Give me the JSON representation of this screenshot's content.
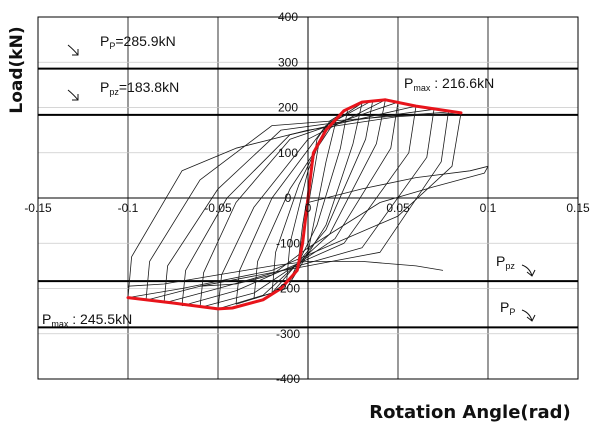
{
  "chart_data": {
    "type": "line",
    "xlabel": "Rotation Angle(rad)",
    "ylabel": "Load(kN)",
    "xlim": [
      -0.15,
      0.15
    ],
    "ylim": [
      -400,
      400
    ],
    "x_ticks": [
      "-0.15",
      "-0.1",
      "-0.05",
      "0",
      "0.05",
      "0.1",
      "0.15"
    ],
    "y_ticks": [
      "400",
      "300",
      "200",
      "100",
      "0",
      "-100",
      "-200",
      "-300",
      "-400"
    ],
    "grid": true,
    "reference_lines": [
      {
        "name": "Pp",
        "value": 285.9,
        "label_main": "P",
        "label_sub": "P",
        "label_rest": "=285.9kN",
        "side": "upper-left"
      },
      {
        "name": "Ppz",
        "value": 183.8,
        "label_main": "P",
        "label_sub": "pz",
        "label_rest": "=183.8kN",
        "side": "upper-left"
      },
      {
        "name": "Ppz",
        "value": -183.8,
        "label_main": "P",
        "label_sub": "pz",
        "label_rest": "",
        "side": "lower-right"
      },
      {
        "name": "Pp",
        "value": -285.9,
        "label_main": "P",
        "label_sub": "P",
        "label_rest": "",
        "side": "lower-right"
      }
    ],
    "annotations": [
      {
        "label_main": "P",
        "label_sub": "max",
        "label_rest": " : 216.6kN"
      },
      {
        "label_main": "P",
        "label_sub": "max",
        "label_rest": " : 245.5kN"
      }
    ],
    "series": [
      {
        "role": "envelope",
        "color": "#e8141b",
        "x": [
          -0.1,
          -0.075,
          -0.05,
          -0.042,
          -0.025,
          -0.015,
          -0.006,
          -0.003,
          0.0,
          0.003,
          0.01,
          0.02,
          0.03,
          0.043,
          0.06,
          0.085
        ],
        "y": [
          -220,
          -232,
          -245,
          -243,
          -225,
          -200,
          -160,
          -100,
          0,
          100,
          150,
          193,
          212,
          217,
          203,
          188
        ]
      },
      {
        "role": "hysteresis",
        "color": "#1a1a1a",
        "loops": [
          {
            "x": [
              -0.003,
              0.0,
              0.003,
              0.006,
              0.003,
              0.0,
              -0.003,
              -0.003
            ],
            "y": [
              -100,
              0,
              100,
              120,
              90,
              0,
              -90,
              -100
            ]
          },
          {
            "x": [
              -0.006,
              -0.003,
              0.005,
              0.01,
              0.006,
              0.0,
              -0.006,
              -0.006
            ],
            "y": [
              -160,
              -60,
              130,
              160,
              120,
              -20,
              -150,
              -160
            ]
          },
          {
            "x": [
              -0.012,
              -0.01,
              0.0,
              0.01,
              0.016,
              0.01,
              0.0,
              -0.012
            ],
            "y": [
              -190,
              -100,
              60,
              160,
              178,
              80,
              -120,
              -190
            ]
          },
          {
            "x": [
              -0.02,
              -0.018,
              -0.005,
              0.012,
              0.022,
              0.018,
              0.005,
              -0.01,
              -0.02
            ],
            "y": [
              -210,
              -120,
              30,
              170,
              195,
              110,
              -60,
              -180,
              -210
            ]
          },
          {
            "x": [
              -0.03,
              -0.028,
              -0.01,
              0.015,
              0.03,
              0.025,
              0.01,
              -0.012,
              -0.03
            ],
            "y": [
              -222,
              -140,
              20,
              170,
              210,
              120,
              -60,
              -200,
              -222
            ]
          },
          {
            "x": [
              -0.04,
              -0.038,
              -0.02,
              0.01,
              0.036,
              0.032,
              0.01,
              -0.02,
              -0.04
            ],
            "y": [
              -235,
              -160,
              0,
              160,
              216,
              130,
              -70,
              -210,
              -235
            ]
          },
          {
            "x": [
              -0.05,
              -0.048,
              -0.03,
              0.0,
              0.043,
              0.038,
              0.012,
              -0.025,
              -0.05
            ],
            "y": [
              -245,
              -170,
              -20,
              130,
              217,
              120,
              -80,
              -215,
              -245
            ]
          },
          {
            "x": [
              -0.06,
              -0.058,
              -0.04,
              -0.01,
              0.05,
              0.046,
              0.015,
              -0.03,
              -0.06
            ],
            "y": [
              -242,
              -165,
              -10,
              130,
              212,
              110,
              -90,
              -210,
              -242
            ]
          },
          {
            "x": [
              -0.07,
              -0.068,
              -0.045,
              -0.01,
              0.06,
              0.056,
              0.02,
              -0.04,
              -0.07
            ],
            "y": [
              -238,
              -160,
              0,
              140,
              203,
              100,
              -100,
              -205,
              -238
            ]
          },
          {
            "x": [
              -0.08,
              -0.078,
              -0.05,
              -0.015,
              0.07,
              0.066,
              0.03,
              -0.05,
              -0.08
            ],
            "y": [
              -232,
              -150,
              20,
              150,
              196,
              90,
              -110,
              -200,
              -232
            ]
          },
          {
            "x": [
              -0.09,
              -0.088,
              -0.06,
              -0.02,
              0.078,
              0.074,
              0.04,
              -0.06,
              -0.09
            ],
            "y": [
              -226,
              -140,
              40,
              160,
              190,
              80,
              -120,
              -195,
              -226
            ]
          },
          {
            "x": [
              -0.1,
              -0.098,
              -0.07,
              -0.04,
              0.0,
              0.05,
              0.085,
              0.08,
              0.05,
              -0.02,
              -0.07,
              -0.1
            ],
            "y": [
              -220,
              -130,
              60,
              110,
              150,
              180,
              188,
              70,
              -40,
              -160,
              -200,
              -220
            ]
          },
          {
            "x": [
              0.0,
              0.03,
              0.06,
              0.09,
              0.1,
              0.098,
              0.07,
              0.04,
              0.02,
              0.0,
              -0.02,
              -0.04,
              -0.06
            ],
            "y": [
              -10,
              20,
              45,
              60,
              70,
              55,
              25,
              -10,
              -60,
              -110,
              -170,
              -190,
              -195
            ]
          },
          {
            "x": [
              -0.1,
              -0.08,
              -0.05,
              -0.02,
              0.0,
              0.03,
              0.06,
              0.075
            ],
            "y": [
              -195,
              -190,
              -170,
              -150,
              -140,
              -140,
              -150,
              -160
            ]
          }
        ]
      }
    ]
  }
}
